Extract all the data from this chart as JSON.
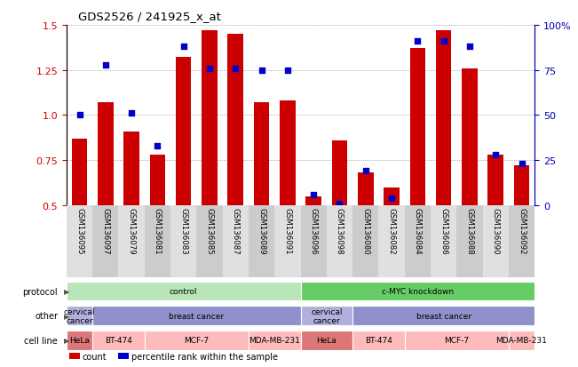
{
  "title": "GDS2526 / 241925_x_at",
  "samples": [
    "GSM136095",
    "GSM136097",
    "GSM136079",
    "GSM136081",
    "GSM136083",
    "GSM136085",
    "GSM136087",
    "GSM136089",
    "GSM136091",
    "GSM136096",
    "GSM136098",
    "GSM136080",
    "GSM136082",
    "GSM136084",
    "GSM136086",
    "GSM136088",
    "GSM136090",
    "GSM136092"
  ],
  "red_bars": [
    0.87,
    1.07,
    0.91,
    0.78,
    1.32,
    1.47,
    1.45,
    1.07,
    1.08,
    0.55,
    0.86,
    0.68,
    0.6,
    1.37,
    1.47,
    1.26,
    0.78,
    0.72
  ],
  "blue_dots": [
    1.0,
    1.28,
    1.01,
    0.83,
    1.38,
    1.26,
    1.26,
    1.25,
    1.25,
    0.56,
    0.51,
    0.69,
    0.54,
    1.41,
    1.41,
    1.38,
    0.78,
    0.73
  ],
  "ylim": [
    0.5,
    1.5
  ],
  "yticks_left": [
    0.5,
    0.75,
    1.0,
    1.25,
    1.5
  ],
  "yticks_right": [
    0,
    25,
    50,
    75,
    100
  ],
  "bar_color": "#cc0000",
  "dot_color": "#0000cc",
  "bar_bottom": 0.5,
  "dot_size": 25,
  "grid_color": "#888888",
  "left_axis_color": "#cc0000",
  "right_axis_color": "#0000aa",
  "protocol_groups": [
    {
      "label": "control",
      "span": [
        0,
        9
      ],
      "color": "#b8e6b8"
    },
    {
      "label": "c-MYC knockdown",
      "span": [
        9,
        18
      ],
      "color": "#66cc66"
    }
  ],
  "other_groups": [
    {
      "label": "cervical\ncancer",
      "span": [
        0,
        1
      ],
      "color": "#b0b0dd"
    },
    {
      "label": "breast cancer",
      "span": [
        1,
        9
      ],
      "color": "#9090cc"
    },
    {
      "label": "cervical\ncancer",
      "span": [
        9,
        11
      ],
      "color": "#b0b0dd"
    },
    {
      "label": "breast cancer",
      "span": [
        11,
        18
      ],
      "color": "#9090cc"
    }
  ],
  "cell_line_groups": [
    {
      "label": "HeLa",
      "span": [
        0,
        1
      ],
      "color": "#dd7777"
    },
    {
      "label": "BT-474",
      "span": [
        1,
        3
      ],
      "color": "#ffbbbb"
    },
    {
      "label": "MCF-7",
      "span": [
        3,
        7
      ],
      "color": "#ffbbbb"
    },
    {
      "label": "MDA-MB-231",
      "span": [
        7,
        9
      ],
      "color": "#ffbbbb"
    },
    {
      "label": "HeLa",
      "span": [
        9,
        11
      ],
      "color": "#dd7777"
    },
    {
      "label": "BT-474",
      "span": [
        11,
        13
      ],
      "color": "#ffbbbb"
    },
    {
      "label": "MCF-7",
      "span": [
        13,
        17
      ],
      "color": "#ffbbbb"
    },
    {
      "label": "MDA-MB-231",
      "span": [
        17,
        18
      ],
      "color": "#ffbbbb"
    }
  ],
  "annot_row_labels": [
    "protocol",
    "other",
    "cell line"
  ]
}
